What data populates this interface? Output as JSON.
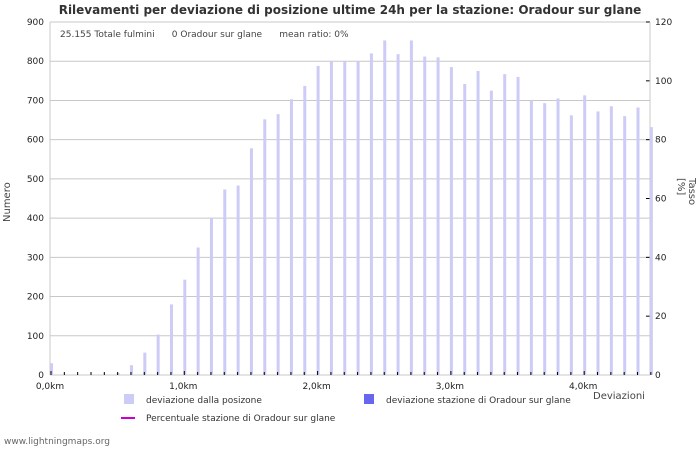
{
  "title": "Rilevamenti per deviazione di posizione ultime 24h per la stazione: Oradour sur glane",
  "stats": {
    "total": "25.155 Totale fulmini",
    "station": "0 Oradour sur glane",
    "ratio": "mean ratio: 0%"
  },
  "footer": "www.lightningmaps.org",
  "legend": {
    "item1": "deviazione dalla posizone",
    "item2": "deviazione stazione di Oradour sur glane",
    "item3": "Percentuale stazione di Oradour sur glane"
  },
  "colors": {
    "bar": "#ccccf7",
    "station_bar": "#6666ee",
    "line": "#cc00cc"
  },
  "chart_data": {
    "type": "bar",
    "title": "Rilevamenti per deviazione di posizione ultime 24h per la stazione: Oradour sur glane",
    "xlabel": "Deviazioni",
    "ylabel": "Numero",
    "ylabel_right": "Tasso [%]",
    "ylim": [
      0,
      900
    ],
    "ylim_right": [
      0,
      120
    ],
    "yticks": [
      0,
      100,
      200,
      300,
      400,
      500,
      600,
      700,
      800,
      900
    ],
    "yticks_right": [
      0,
      20,
      40,
      60,
      80,
      100,
      120
    ],
    "xtick_labels": [
      "0,0km",
      "1,0km",
      "2,0km",
      "3,0km",
      "4,0km"
    ],
    "categories": [
      "0.0",
      "0.1",
      "0.2",
      "0.3",
      "0.4",
      "0.5",
      "0.6",
      "0.7",
      "0.8",
      "0.9",
      "1.0",
      "1.1",
      "1.2",
      "1.3",
      "1.4",
      "1.5",
      "1.6",
      "1.7",
      "1.8",
      "1.9",
      "2.0",
      "2.1",
      "2.2",
      "2.3",
      "2.4",
      "2.5",
      "2.6",
      "2.7",
      "2.8",
      "2.9",
      "3.0",
      "3.1",
      "3.2",
      "3.3",
      "3.4",
      "3.5",
      "3.6",
      "3.7",
      "3.8",
      "3.9",
      "4.0",
      "4.1",
      "4.2",
      "4.3",
      "4.4",
      "4.5"
    ],
    "series": [
      {
        "name": "deviazione dalla posizone",
        "values": [
          30,
          0,
          0,
          0,
          0,
          5,
          25,
          57,
          103,
          180,
          243,
          325,
          400,
          473,
          483,
          578,
          652,
          665,
          703,
          737,
          788,
          800,
          800,
          800,
          820,
          853,
          818,
          853,
          812,
          810,
          785,
          742,
          775,
          725,
          767,
          760,
          700,
          693,
          705,
          662,
          713,
          672,
          685,
          660,
          682,
          632
        ]
      },
      {
        "name": "deviazione stazione di Oradour sur glane",
        "values": [
          0,
          0,
          0,
          0,
          0,
          0,
          0,
          0,
          0,
          0,
          0,
          0,
          0,
          0,
          0,
          0,
          0,
          0,
          0,
          0,
          0,
          0,
          0,
          0,
          0,
          0,
          0,
          0,
          0,
          0,
          0,
          0,
          0,
          0,
          0,
          0,
          0,
          0,
          0,
          0,
          0,
          0,
          0,
          0,
          0,
          0
        ]
      },
      {
        "name": "Percentuale stazione di Oradour sur glane",
        "values": []
      }
    ],
    "grid": true,
    "legend_position": "bottom"
  }
}
